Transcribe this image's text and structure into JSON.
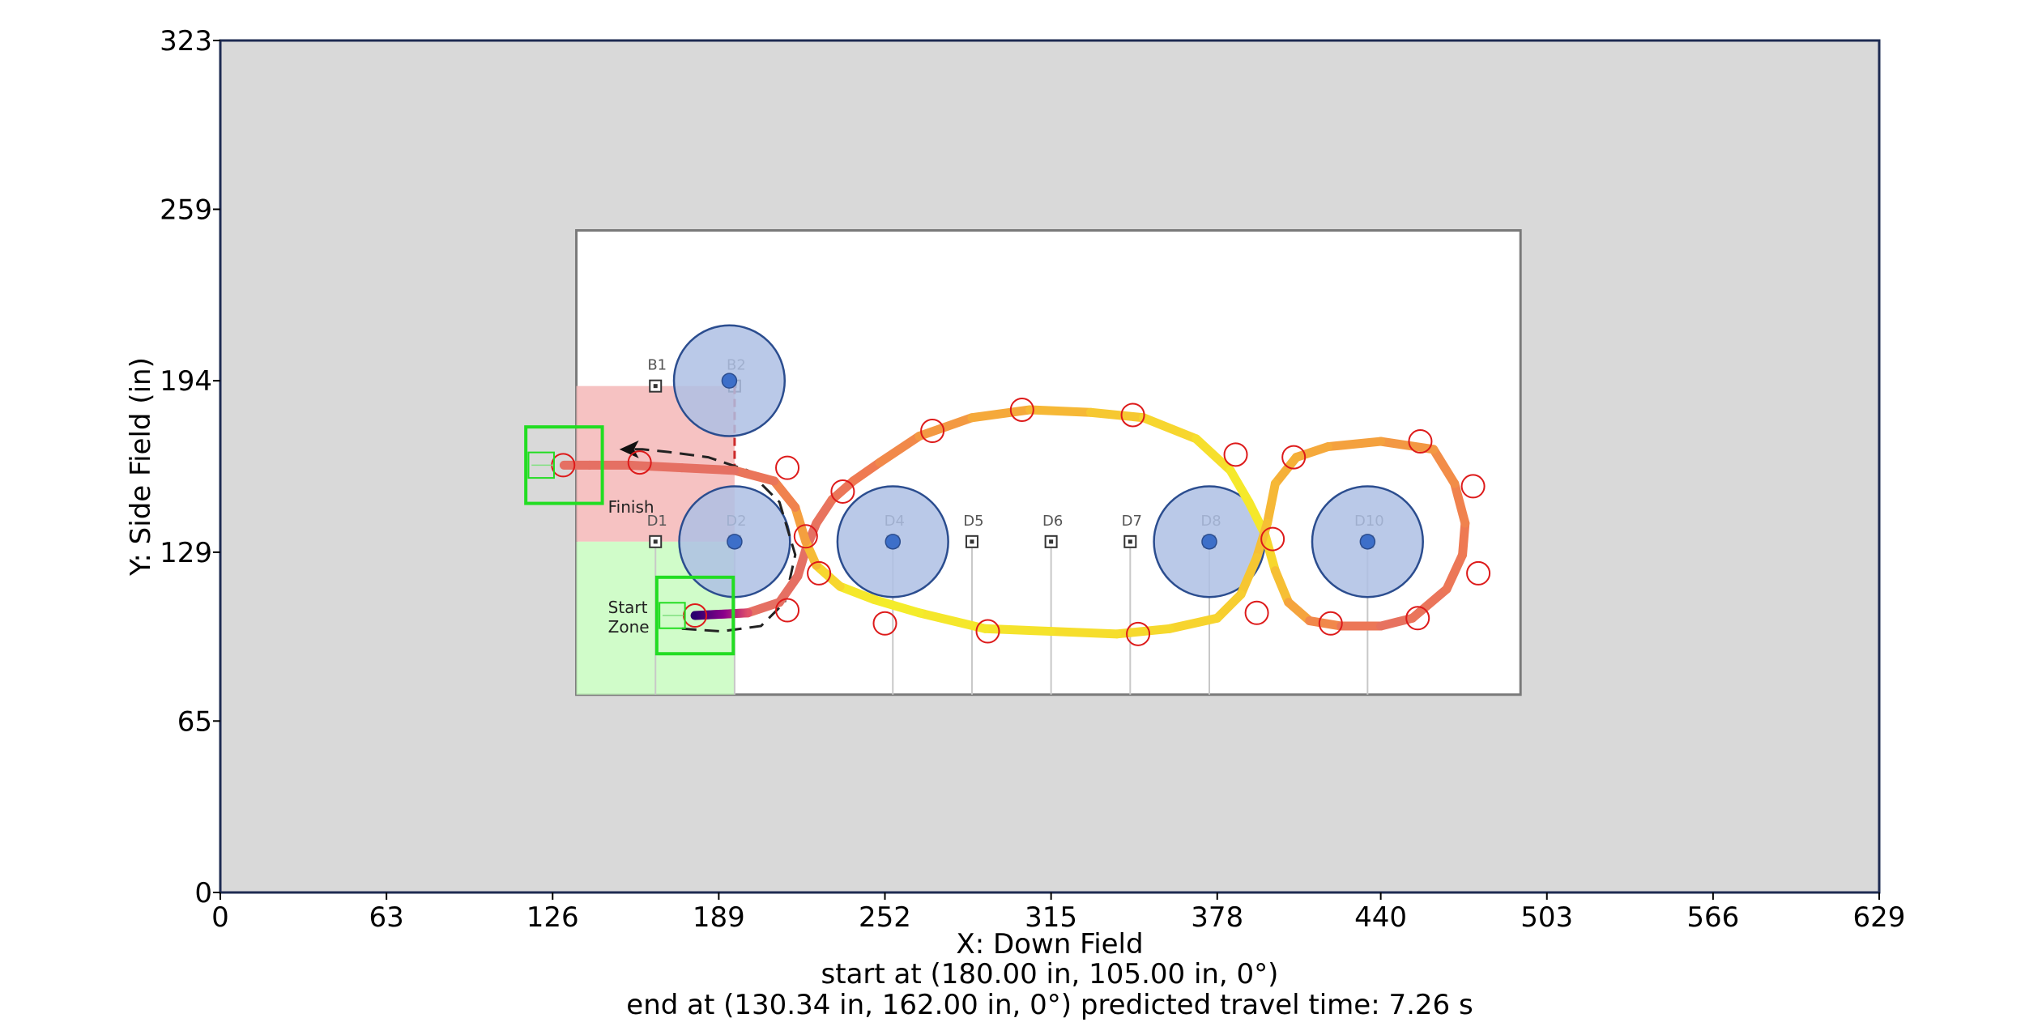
{
  "chart_data": {
    "type": "line",
    "xlabel": "X: Down Field",
    "ylabel": "Y: Side Field (in)",
    "xlim": [
      0,
      629
    ],
    "ylim": [
      0,
      323
    ],
    "x_ticks": [
      0,
      63,
      126,
      189,
      252,
      315,
      378,
      440,
      503,
      566,
      629
    ],
    "y_ticks": [
      0,
      65,
      129,
      194,
      259,
      323
    ],
    "info_lines": [
      "start at (180.00 in, 105.00 in, 0°)",
      "end at (130.34 in, 162.00 in, 0°) predicted travel time: 7.26 s"
    ],
    "field_image_extent": {
      "x": [
        135,
        493
      ],
      "y": [
        75,
        251
      ]
    },
    "zones": [
      {
        "label": "Finish",
        "x": [
          135,
          195
        ],
        "y": [
          133,
          192
        ],
        "color": "#f4b7b7"
      },
      {
        "label_lines": [
          "Start",
          "Zone"
        ],
        "x": [
          135,
          195
        ],
        "y": [
          75,
          133
        ],
        "color": "#c8fbc0"
      }
    ],
    "markers": [
      {
        "label": "B1",
        "x": 165,
        "y": 192
      },
      {
        "label": "B2",
        "x": 195,
        "y": 192
      },
      {
        "label": "D1",
        "x": 165,
        "y": 133
      },
      {
        "label": "D2",
        "x": 195,
        "y": 133
      },
      {
        "label": "D4",
        "x": 255,
        "y": 133
      },
      {
        "label": "D5",
        "x": 285,
        "y": 133
      },
      {
        "label": "D6",
        "x": 315,
        "y": 133
      },
      {
        "label": "D7",
        "x": 345,
        "y": 133
      },
      {
        "label": "D8",
        "x": 375,
        "y": 133
      },
      {
        "label": "D10",
        "x": 435,
        "y": 133
      }
    ],
    "obstacles": [
      {
        "x": 193,
        "y": 194,
        "r": 21
      },
      {
        "x": 195,
        "y": 133,
        "r": 21
      },
      {
        "x": 255,
        "y": 133,
        "r": 21
      },
      {
        "x": 375,
        "y": 133,
        "r": 21
      },
      {
        "x": 435,
        "y": 133,
        "r": 21
      }
    ],
    "robot_boxes": [
      {
        "x": 180,
        "y": 105,
        "size": 29
      },
      {
        "x": 130.34,
        "y": 162,
        "size": 29
      }
    ],
    "waypoints": [
      [
        180,
        105
      ],
      [
        215,
        107
      ],
      [
        215,
        161
      ],
      [
        222,
        135
      ],
      [
        227,
        121
      ],
      [
        236,
        152
      ],
      [
        252,
        102
      ],
      [
        270,
        175
      ],
      [
        291,
        99
      ],
      [
        304,
        183
      ],
      [
        348,
        98
      ],
      [
        346,
        181
      ],
      [
        385,
        166
      ],
      [
        393,
        106
      ],
      [
        399,
        134
      ],
      [
        407,
        165
      ],
      [
        421,
        102
      ],
      [
        455,
        171
      ],
      [
        454,
        104
      ],
      [
        475,
        154
      ],
      [
        477,
        121
      ],
      [
        159,
        163
      ],
      [
        130,
        162
      ]
    ],
    "path": [
      [
        180,
        105
      ],
      [
        200,
        106
      ],
      [
        212,
        110
      ],
      [
        219,
        120
      ],
      [
        222,
        130
      ],
      [
        226,
        140
      ],
      [
        232,
        149
      ],
      [
        240,
        156
      ],
      [
        250,
        163
      ],
      [
        265,
        173
      ],
      [
        285,
        180
      ],
      [
        307,
        183
      ],
      [
        330,
        182
      ],
      [
        350,
        180
      ],
      [
        370,
        172
      ],
      [
        383,
        160
      ],
      [
        390,
        148
      ],
      [
        396,
        136
      ],
      [
        400,
        122
      ],
      [
        405,
        110
      ],
      [
        413,
        103
      ],
      [
        425,
        101
      ],
      [
        440,
        101
      ],
      [
        452,
        104
      ],
      [
        465,
        115
      ],
      [
        471,
        128
      ],
      [
        472,
        140
      ],
      [
        468,
        155
      ],
      [
        460,
        168
      ],
      [
        440,
        171
      ],
      [
        420,
        169
      ],
      [
        408,
        165
      ],
      [
        400,
        155
      ],
      [
        397,
        140
      ],
      [
        393,
        127
      ],
      [
        387,
        113
      ],
      [
        378,
        104
      ],
      [
        360,
        100
      ],
      [
        340,
        98
      ],
      [
        315,
        99
      ],
      [
        290,
        100
      ],
      [
        265,
        106
      ],
      [
        248,
        111
      ],
      [
        235,
        116
      ],
      [
        226,
        124
      ],
      [
        222,
        133
      ],
      [
        218,
        146
      ],
      [
        210,
        156
      ],
      [
        195,
        160
      ],
      [
        175,
        161
      ],
      [
        155,
        162
      ],
      [
        140,
        162
      ],
      [
        130.34,
        162
      ]
    ],
    "planned_path": [
      [
        175,
        100
      ],
      [
        190,
        99
      ],
      [
        205,
        101
      ],
      [
        214,
        110
      ],
      [
        218,
        128
      ],
      [
        212,
        148
      ],
      [
        200,
        160
      ],
      [
        185,
        165
      ],
      [
        170,
        167
      ],
      [
        160,
        168
      ],
      [
        155,
        168
      ]
    ],
    "colors": {
      "background": "#d9d9d9",
      "frame": "#1e2b52",
      "obstacle_fill": "#aec0e4",
      "obstacle_edge": "#2b4d8f",
      "obstacle_center": "#3d6fc9",
      "robot_box": "#22dd22",
      "waypoint": "#dd1a1a",
      "start_gradient": [
        "#2a006e",
        "#8b008b",
        "#e0506a"
      ],
      "path_gradient": [
        "#e57063",
        "#ef7a52",
        "#f5a73b",
        "#f7d32e",
        "#f4ef2a"
      ]
    }
  }
}
